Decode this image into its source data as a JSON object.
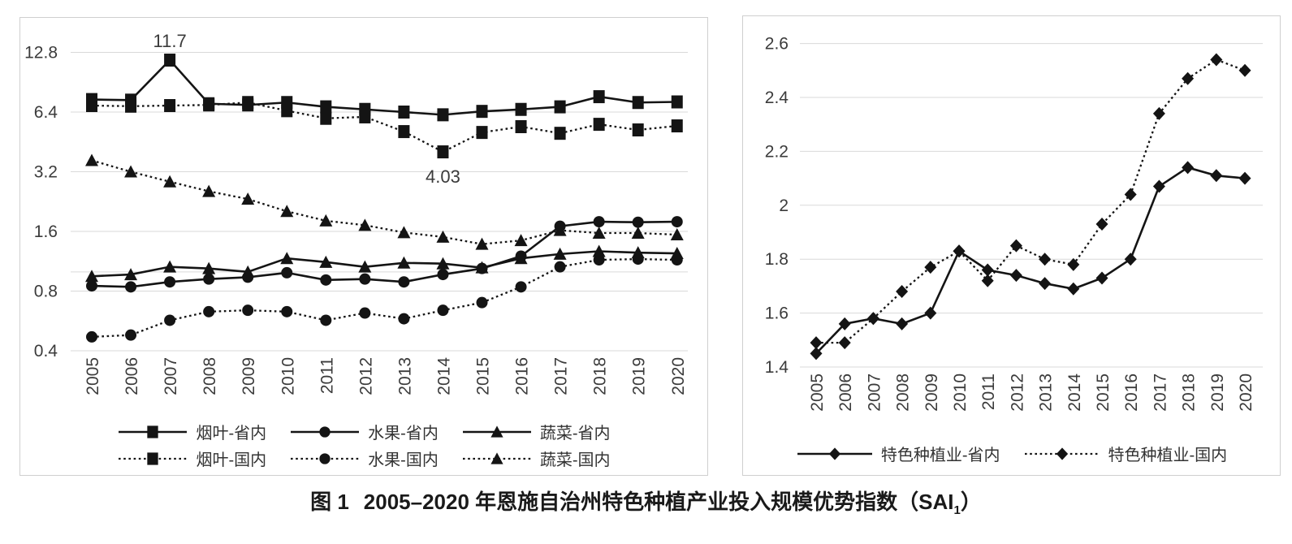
{
  "caption": {
    "figure_label": "图 1",
    "text": "2005–2020 年恩施自治州特色种植产业投入规模优势指数（SAI",
    "subscript": "1",
    "close": "）"
  },
  "chart_data": [
    {
      "type": "line",
      "title": "",
      "y_scale": "log2",
      "y_ticks": [
        12.8,
        6.4,
        3.2,
        1.6,
        0.8,
        0.4
      ],
      "ylim": [
        0.4,
        12.8
      ],
      "reference_line": 1.0,
      "grid": true,
      "legend_position": "bottom",
      "categories": [
        "2005",
        "2006",
        "2007",
        "2008",
        "2009",
        "2010",
        "2011",
        "2012",
        "2013",
        "2014",
        "2015",
        "2016",
        "2017",
        "2018",
        "2019",
        "2020"
      ],
      "series": [
        {
          "name": "烟叶-省内",
          "id": "tobacco-provincial",
          "style": "solid",
          "marker": "square",
          "values": [
            7.4,
            7.35,
            11.7,
            7.05,
            6.95,
            7.15,
            6.8,
            6.6,
            6.4,
            6.2,
            6.45,
            6.6,
            6.8,
            7.65,
            7.15,
            7.2
          ]
        },
        {
          "name": "水果-省内",
          "id": "fruit-provincial",
          "style": "solid",
          "marker": "circle",
          "values": [
            0.85,
            0.84,
            0.89,
            0.92,
            0.94,
            0.99,
            0.91,
            0.92,
            0.89,
            0.97,
            1.04,
            1.2,
            1.7,
            1.79,
            1.78,
            1.79
          ]
        },
        {
          "name": "蔬菜-省内",
          "id": "vegetable-provincial",
          "style": "solid",
          "marker": "triangle",
          "values": [
            0.95,
            0.97,
            1.06,
            1.04,
            1.0,
            1.17,
            1.12,
            1.06,
            1.11,
            1.1,
            1.05,
            1.17,
            1.23,
            1.27,
            1.25,
            1.24
          ]
        },
        {
          "name": "烟叶-国内",
          "id": "tobacco-national",
          "style": "dotted",
          "marker": "square",
          "values": [
            6.9,
            6.85,
            6.9,
            6.95,
            7.15,
            6.5,
            5.95,
            6.05,
            5.1,
            4.03,
            5.05,
            5.4,
            5.0,
            5.55,
            5.2,
            5.45
          ]
        },
        {
          "name": "水果-国内",
          "id": "fruit-national",
          "style": "dotted",
          "marker": "circle",
          "values": [
            0.47,
            0.48,
            0.57,
            0.63,
            0.64,
            0.63,
            0.57,
            0.62,
            0.58,
            0.64,
            0.7,
            0.84,
            1.06,
            1.15,
            1.16,
            1.15
          ]
        },
        {
          "name": "蔬菜-国内",
          "id": "vegetable-national",
          "style": "dotted",
          "marker": "triangle",
          "values": [
            3.65,
            3.2,
            2.85,
            2.55,
            2.33,
            2.02,
            1.81,
            1.72,
            1.58,
            1.5,
            1.38,
            1.44,
            1.62,
            1.57,
            1.57,
            1.54
          ]
        }
      ],
      "annotations": [
        {
          "text": "11.7",
          "series": "烟叶-省内",
          "year": "2007",
          "position": "above"
        },
        {
          "text": "4.03",
          "series": "烟叶-国内",
          "year": "2014",
          "position": "below"
        }
      ]
    },
    {
      "type": "line",
      "title": "",
      "y_scale": "linear",
      "y_ticks": [
        2.6,
        2.4,
        2.2,
        2,
        1.8,
        1.6,
        1.4
      ],
      "ylim": [
        1.4,
        2.6
      ],
      "grid": true,
      "legend_position": "bottom",
      "categories": [
        "2005",
        "2006",
        "2007",
        "2008",
        "2009",
        "2010",
        "2011",
        "2012",
        "2013",
        "2014",
        "2015",
        "2016",
        "2017",
        "2018",
        "2019",
        "2020"
      ],
      "series": [
        {
          "name": "特色种植业-省内",
          "id": "specialty-planting-provincial",
          "style": "solid",
          "marker": "diamond",
          "values": [
            1.45,
            1.56,
            1.58,
            1.56,
            1.6,
            1.83,
            1.76,
            1.74,
            1.71,
            1.69,
            1.73,
            1.8,
            2.07,
            2.14,
            2.11,
            2.1
          ]
        },
        {
          "name": "特色种植业-国内",
          "id": "specialty-planting-national",
          "style": "dotted",
          "marker": "diamond",
          "values": [
            1.49,
            1.49,
            1.58,
            1.68,
            1.77,
            1.83,
            1.72,
            1.85,
            1.8,
            1.78,
            1.93,
            2.04,
            2.34,
            2.47,
            2.54,
            2.5
          ]
        }
      ],
      "annotations": []
    }
  ]
}
